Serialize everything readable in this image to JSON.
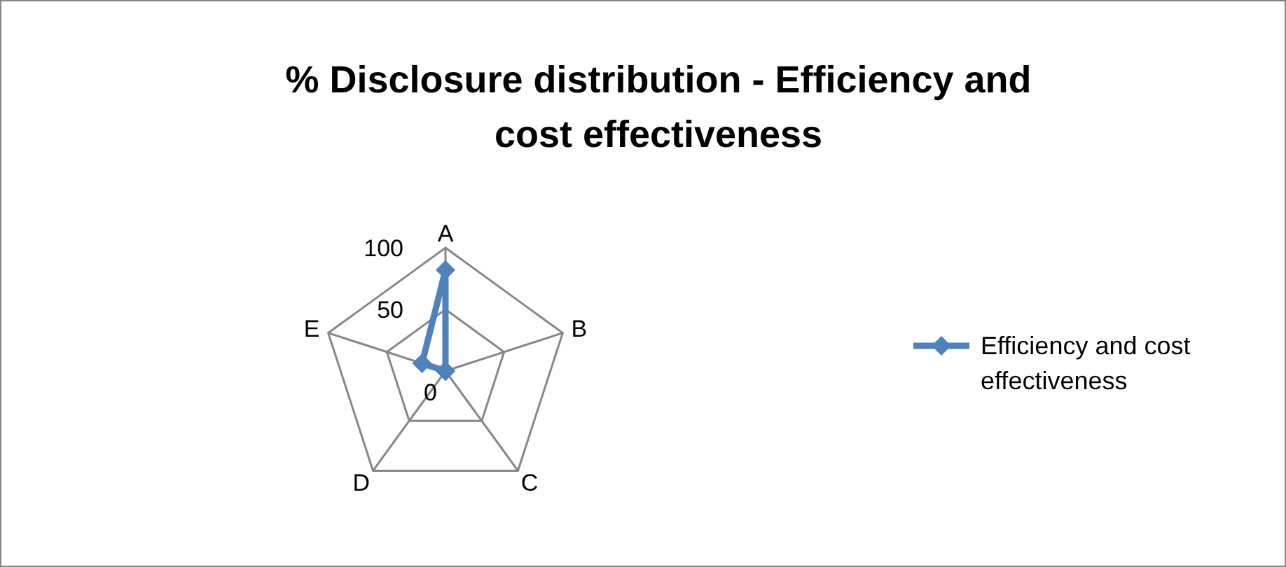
{
  "chart_data": {
    "type": "radar",
    "title": "% Disclosure distribution - Efficiency and cost effectiveness",
    "categories": [
      "A",
      "B",
      "C",
      "D",
      "E"
    ],
    "series": [
      {
        "name": "Efficiency and cost effectiveness",
        "color": "#4f81bd",
        "values": [
          82,
          0,
          0,
          0,
          20
        ]
      }
    ],
    "ylim": [
      0,
      100
    ],
    "yticks": [
      0,
      50,
      100
    ],
    "grid": true,
    "legend": "right",
    "marker": "diamond"
  }
}
